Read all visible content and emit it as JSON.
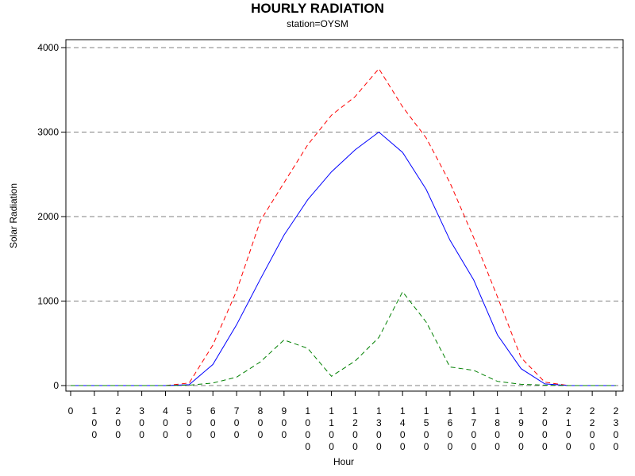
{
  "chart_data": {
    "type": "line",
    "title": "HOURLY RADIATION",
    "subtitle": "station=OYSM",
    "xlabel": "Hour",
    "ylabel": "Solar Radiation",
    "xlim": [
      0,
      2300
    ],
    "ylim": [
      -50,
      4100
    ],
    "yticks": [
      0,
      1000,
      2000,
      3000,
      4000
    ],
    "grid": "horizontal dashed",
    "legend": "none",
    "x": [
      0,
      100,
      200,
      300,
      400,
      500,
      600,
      700,
      800,
      900,
      1000,
      1100,
      1200,
      1300,
      1400,
      1500,
      1600,
      1700,
      1800,
      1900,
      2000,
      2100,
      2200,
      2300
    ],
    "xtick_labels": [
      "0",
      "100",
      "200",
      "300",
      "400",
      "500",
      "600",
      "700",
      "800",
      "900",
      "1000",
      "1100",
      "1200",
      "1300",
      "1400",
      "1500",
      "1600",
      "1700",
      "1800",
      "1900",
      "2000",
      "2100",
      "2200",
      "2300"
    ],
    "series": [
      {
        "color": "#ff0000",
        "style": "dashed",
        "values": [
          0,
          0,
          0,
          0,
          0,
          30,
          480,
          1120,
          1950,
          2400,
          2850,
          3200,
          3420,
          3750,
          3300,
          2930,
          2400,
          1750,
          1050,
          330,
          40,
          0,
          0,
          0
        ]
      },
      {
        "color": "#0000ff",
        "style": "solid",
        "values": [
          0,
          0,
          0,
          0,
          0,
          10,
          250,
          720,
          1260,
          1780,
          2200,
          2530,
          2790,
          3000,
          2760,
          2320,
          1720,
          1250,
          600,
          200,
          20,
          0,
          0,
          0
        ]
      },
      {
        "color": "#008000",
        "style": "dashed",
        "values": [
          0,
          0,
          0,
          0,
          0,
          5,
          30,
          100,
          280,
          540,
          440,
          110,
          290,
          570,
          1110,
          750,
          220,
          180,
          50,
          15,
          5,
          0,
          0,
          0
        ]
      }
    ]
  }
}
